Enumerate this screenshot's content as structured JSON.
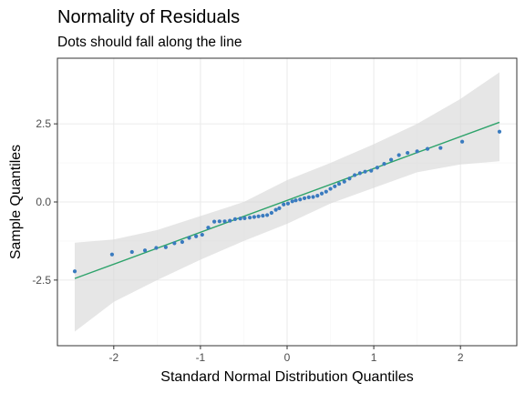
{
  "chart_data": {
    "type": "scatter",
    "title": "Normality of Residuals",
    "subtitle": "Dots should fall along the line",
    "xlabel": "Standard Normal Distribution Quantiles",
    "ylabel": "Sample Quantiles",
    "xlim": [
      -2.65,
      2.65
    ],
    "ylim": [
      -4.6,
      4.6
    ],
    "x_ticks": [
      -2,
      -1,
      0,
      1,
      2
    ],
    "x_tick_labels": [
      "-2",
      "-1",
      "0",
      "1",
      "2"
    ],
    "y_ticks": [
      -2.5,
      0.0,
      2.5
    ],
    "y_tick_labels": [
      "-2.5",
      "0.0",
      "2.5"
    ],
    "grid": true,
    "colors": {
      "points": "#3a7bbf",
      "reference_line": "#2ea36b",
      "confidence_band": "#d9d9d9",
      "panel_border": "#333333",
      "grid_major": "#ebebeb",
      "grid_minor": "#f5f5f5"
    },
    "reference_line": {
      "points": [
        [
          -2.45,
          -2.45
        ],
        [
          2.45,
          2.55
        ]
      ]
    },
    "confidence_band": {
      "x": [
        -2.45,
        -2.0,
        -1.5,
        -1.0,
        -0.5,
        0.0,
        0.5,
        1.0,
        1.5,
        2.0,
        2.45
      ],
      "lower": [
        -4.15,
        -3.2,
        -2.5,
        -1.85,
        -1.25,
        -0.7,
        -0.05,
        0.45,
        0.95,
        1.2,
        1.3
      ],
      "upper": [
        -1.3,
        -1.2,
        -0.9,
        -0.45,
        0.0,
        0.7,
        1.25,
        1.85,
        2.5,
        3.3,
        4.15
      ]
    },
    "points": [
      [
        -2.45,
        -2.22
      ],
      [
        -2.02,
        -1.68
      ],
      [
        -1.79,
        -1.6
      ],
      [
        -1.64,
        -1.55
      ],
      [
        -1.51,
        -1.47
      ],
      [
        -1.4,
        -1.45
      ],
      [
        -1.3,
        -1.32
      ],
      [
        -1.21,
        -1.28
      ],
      [
        -1.13,
        -1.15
      ],
      [
        -1.05,
        -1.1
      ],
      [
        -0.98,
        -1.05
      ],
      [
        -0.91,
        -0.82
      ],
      [
        -0.84,
        -0.63
      ],
      [
        -0.78,
        -0.62
      ],
      [
        -0.72,
        -0.62
      ],
      [
        -0.66,
        -0.6
      ],
      [
        -0.6,
        -0.55
      ],
      [
        -0.54,
        -0.53
      ],
      [
        -0.49,
        -0.52
      ],
      [
        -0.43,
        -0.5
      ],
      [
        -0.38,
        -0.48
      ],
      [
        -0.33,
        -0.46
      ],
      [
        -0.28,
        -0.44
      ],
      [
        -0.23,
        -0.42
      ],
      [
        -0.18,
        -0.35
      ],
      [
        -0.13,
        -0.25
      ],
      [
        -0.09,
        -0.2
      ],
      [
        -0.04,
        -0.08
      ],
      [
        0.01,
        -0.05
      ],
      [
        0.06,
        0.02
      ],
      [
        0.1,
        0.05
      ],
      [
        0.15,
        0.08
      ],
      [
        0.2,
        0.12
      ],
      [
        0.25,
        0.15
      ],
      [
        0.3,
        0.16
      ],
      [
        0.35,
        0.2
      ],
      [
        0.4,
        0.27
      ],
      [
        0.45,
        0.33
      ],
      [
        0.5,
        0.42
      ],
      [
        0.55,
        0.5
      ],
      [
        0.6,
        0.58
      ],
      [
        0.66,
        0.65
      ],
      [
        0.72,
        0.75
      ],
      [
        0.78,
        0.86
      ],
      [
        0.84,
        0.92
      ],
      [
        0.9,
        0.97
      ],
      [
        0.97,
        1.0
      ],
      [
        1.04,
        1.1
      ],
      [
        1.12,
        1.22
      ],
      [
        1.2,
        1.35
      ],
      [
        1.29,
        1.5
      ],
      [
        1.39,
        1.57
      ],
      [
        1.5,
        1.62
      ],
      [
        1.62,
        1.7
      ],
      [
        1.77,
        1.73
      ],
      [
        2.02,
        1.93
      ],
      [
        2.45,
        2.25
      ]
    ]
  }
}
